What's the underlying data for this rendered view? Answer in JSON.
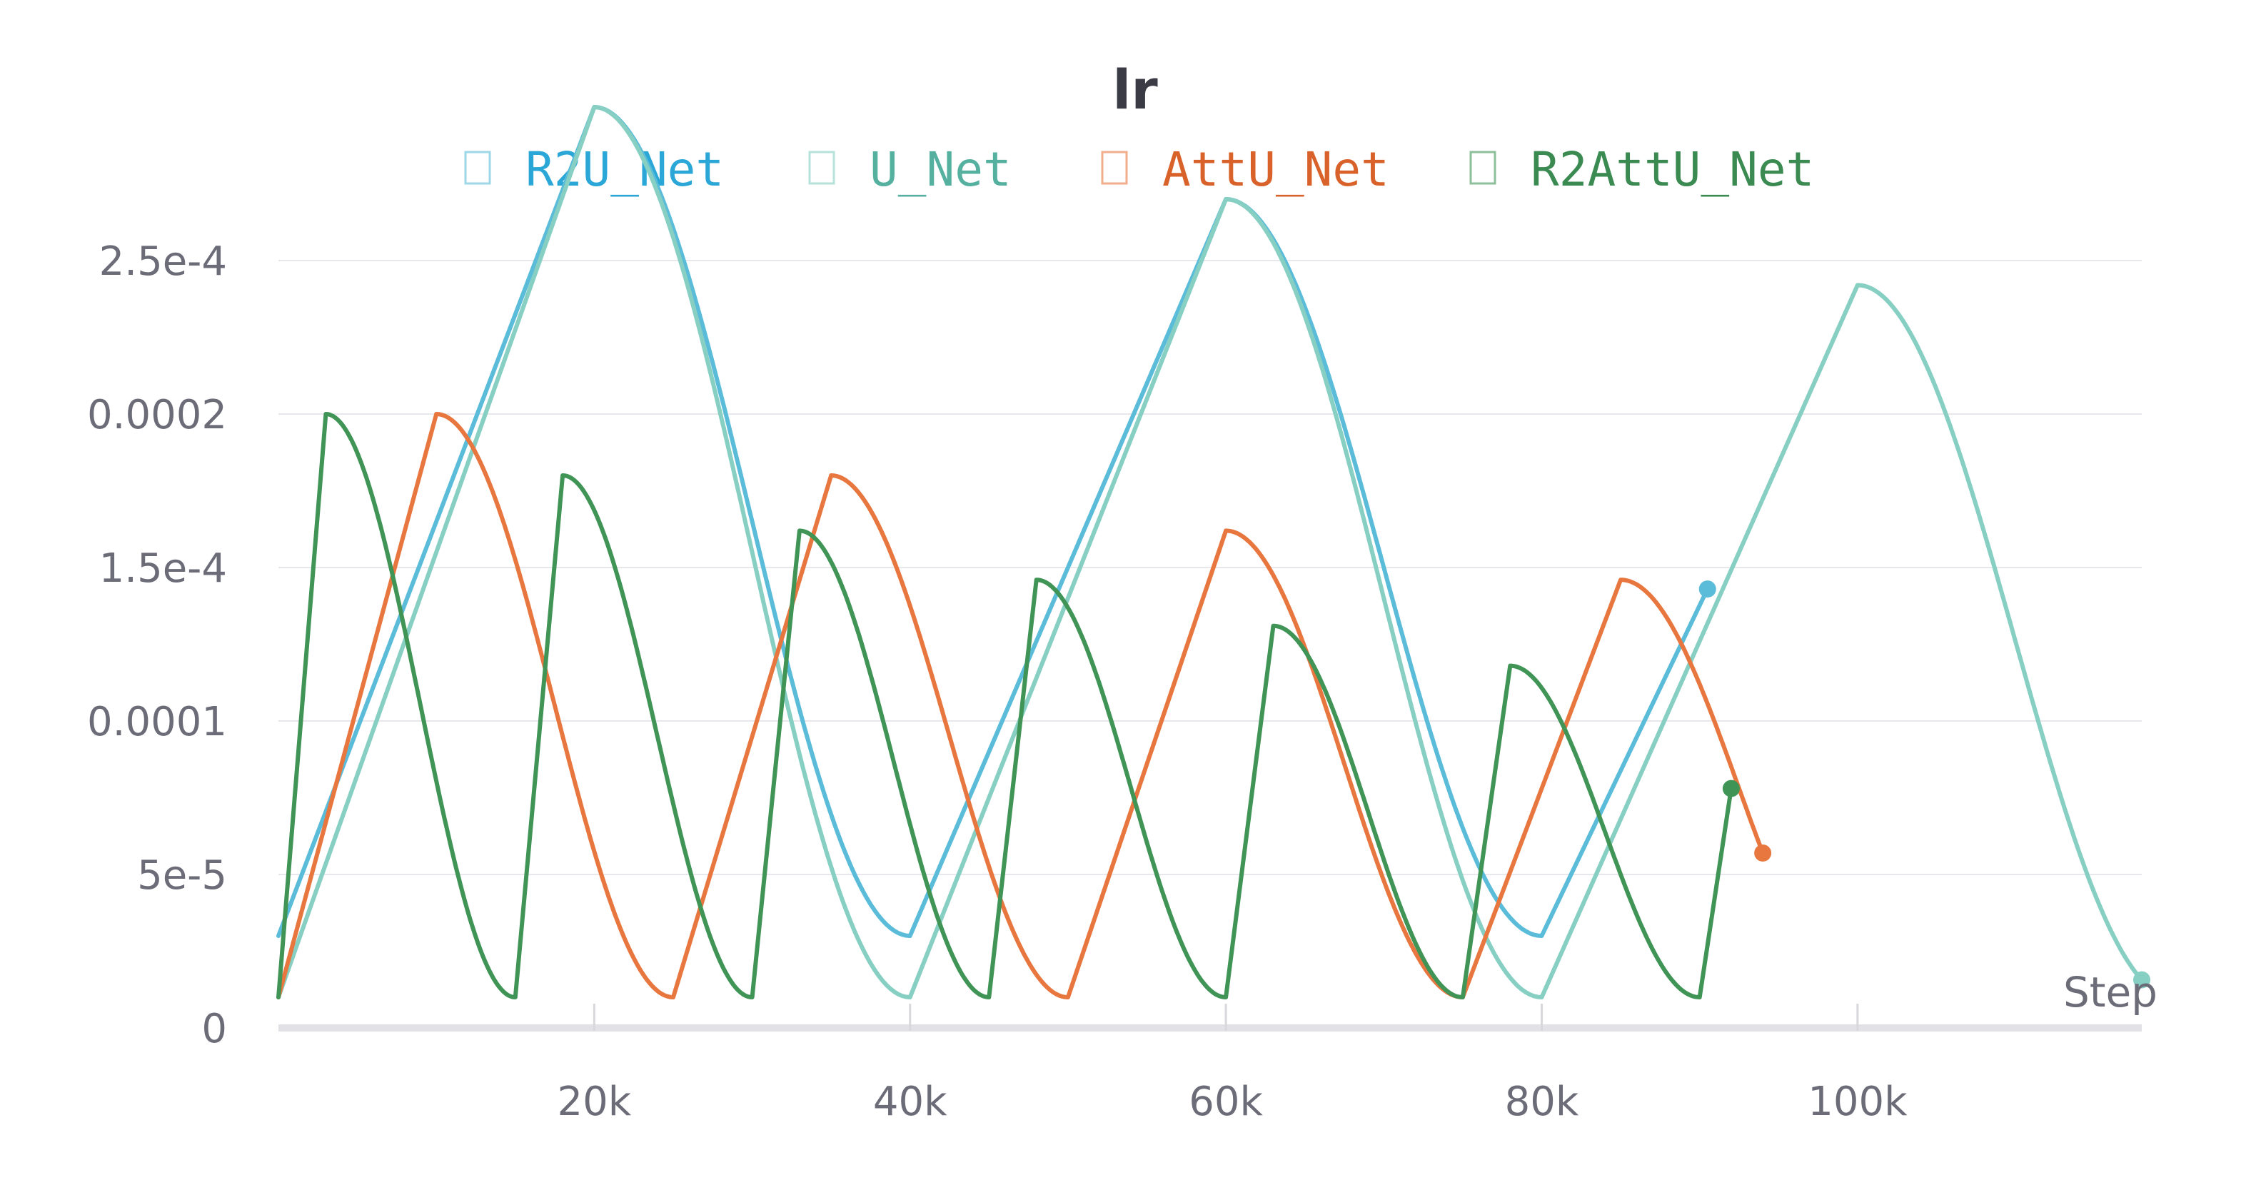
{
  "chart_data": {
    "type": "line",
    "title": "lr",
    "xlabel": "Step",
    "ylabel": "",
    "xlim": [
      0,
      118000
    ],
    "ylim": [
      0,
      0.0003
    ],
    "x_ticks": [
      {
        "value": 20000,
        "label": "20k"
      },
      {
        "value": 40000,
        "label": "40k"
      },
      {
        "value": 60000,
        "label": "60k"
      },
      {
        "value": 80000,
        "label": "80k"
      },
      {
        "value": 100000,
        "label": "100k"
      }
    ],
    "y_ticks": [
      {
        "value": 0,
        "label": "0"
      },
      {
        "value": 5e-05,
        "label": "5e-5"
      },
      {
        "value": 0.0001,
        "label": "0.0001"
      },
      {
        "value": 0.00015,
        "label": "1.5e-4"
      },
      {
        "value": 0.0002,
        "label": "0.0002"
      },
      {
        "value": 0.00025,
        "label": "2.5e-4"
      }
    ],
    "grid": true,
    "legend_position": "top-center",
    "series": [
      {
        "name": "R2U_Net",
        "color": "#5bbcd9",
        "label_color": "#2aa7d6",
        "segments": [
          {
            "kind": "linear",
            "x0": 0,
            "y0": 3e-05,
            "x1": 20000,
            "y1": 0.0003
          },
          {
            "kind": "cosine",
            "x0": 20000,
            "y0": 0.0003,
            "x1": 40000,
            "y1": 3e-05
          },
          {
            "kind": "linear",
            "x0": 40000,
            "y0": 3e-05,
            "x1": 60000,
            "y1": 0.00027
          },
          {
            "kind": "cosine",
            "x0": 60000,
            "y0": 0.00027,
            "x1": 80000,
            "y1": 3e-05
          },
          {
            "kind": "linear",
            "x0": 80000,
            "y0": 3e-05,
            "x1": 90500,
            "y1": 0.000143
          }
        ],
        "end_marker": true
      },
      {
        "name": "U_Net",
        "color": "#86cfc2",
        "label_color": "#55b0a0",
        "segments": [
          {
            "kind": "linear",
            "x0": 0,
            "y0": 1e-05,
            "x1": 20000,
            "y1": 0.0003
          },
          {
            "kind": "cosine",
            "x0": 20000,
            "y0": 0.0003,
            "x1": 40000,
            "y1": 1e-05
          },
          {
            "kind": "linear",
            "x0": 40000,
            "y0": 1e-05,
            "x1": 60000,
            "y1": 0.00027
          },
          {
            "kind": "cosine",
            "x0": 60000,
            "y0": 0.00027,
            "x1": 80000,
            "y1": 1e-05
          },
          {
            "kind": "linear",
            "x0": 80000,
            "y0": 1e-05,
            "x1": 100000,
            "y1": 0.000242
          },
          {
            "kind": "cosine",
            "x0": 100000,
            "y0": 0.000242,
            "x1": 120000,
            "y1": 1e-05,
            "clip_x": 118000
          }
        ],
        "end_marker": true
      },
      {
        "name": "AttU_Net",
        "color": "#e8763f",
        "label_color": "#d9622b",
        "segments": [
          {
            "kind": "linear",
            "x0": 0,
            "y0": 1e-05,
            "x1": 10000,
            "y1": 0.0002
          },
          {
            "kind": "cosine",
            "x0": 10000,
            "y0": 0.0002,
            "x1": 25000,
            "y1": 1e-05
          },
          {
            "kind": "linear",
            "x0": 25000,
            "y0": 1e-05,
            "x1": 35000,
            "y1": 0.00018
          },
          {
            "kind": "cosine",
            "x0": 35000,
            "y0": 0.00018,
            "x1": 50000,
            "y1": 1e-05
          },
          {
            "kind": "linear",
            "x0": 50000,
            "y0": 1e-05,
            "x1": 60000,
            "y1": 0.000162
          },
          {
            "kind": "cosine",
            "x0": 60000,
            "y0": 0.000162,
            "x1": 75000,
            "y1": 1e-05
          },
          {
            "kind": "linear",
            "x0": 75000,
            "y0": 1e-05,
            "x1": 85000,
            "y1": 0.000146
          },
          {
            "kind": "cosine",
            "x0": 85000,
            "y0": 0.000146,
            "x1": 100000,
            "y1": 1e-05,
            "clip_x": 94000
          }
        ],
        "end_marker": true
      },
      {
        "name": "R2AttU_Net",
        "color": "#3f9456",
        "label_color": "#3a8a52",
        "segments": [
          {
            "kind": "linear",
            "x0": 0,
            "y0": 1e-05,
            "x1": 3000,
            "y1": 0.0002
          },
          {
            "kind": "cosine",
            "x0": 3000,
            "y0": 0.0002,
            "x1": 15000,
            "y1": 1e-05
          },
          {
            "kind": "linear",
            "x0": 15000,
            "y0": 1e-05,
            "x1": 18000,
            "y1": 0.00018
          },
          {
            "kind": "cosine",
            "x0": 18000,
            "y0": 0.00018,
            "x1": 30000,
            "y1": 1e-05
          },
          {
            "kind": "linear",
            "x0": 30000,
            "y0": 1e-05,
            "x1": 33000,
            "y1": 0.000162
          },
          {
            "kind": "cosine",
            "x0": 33000,
            "y0": 0.000162,
            "x1": 45000,
            "y1": 1e-05
          },
          {
            "kind": "linear",
            "x0": 45000,
            "y0": 1e-05,
            "x1": 48000,
            "y1": 0.000146
          },
          {
            "kind": "cosine",
            "x0": 48000,
            "y0": 0.000146,
            "x1": 60000,
            "y1": 1e-05
          },
          {
            "kind": "linear",
            "x0": 60000,
            "y0": 1e-05,
            "x1": 63000,
            "y1": 0.000131
          },
          {
            "kind": "cosine",
            "x0": 63000,
            "y0": 0.000131,
            "x1": 75000,
            "y1": 1e-05
          },
          {
            "kind": "linear",
            "x0": 75000,
            "y0": 1e-05,
            "x1": 78000,
            "y1": 0.000118
          },
          {
            "kind": "cosine",
            "x0": 78000,
            "y0": 0.000118,
            "x1": 90000,
            "y1": 1e-05
          },
          {
            "kind": "linear",
            "x0": 90000,
            "y0": 1e-05,
            "x1": 92000,
            "y1": 7.8e-05
          }
        ],
        "end_marker": true
      }
    ]
  }
}
